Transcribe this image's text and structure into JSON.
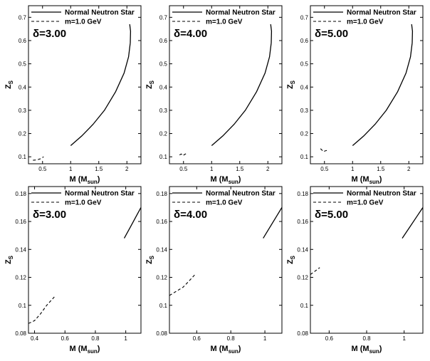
{
  "chart_data": [
    {
      "type": "line",
      "panel": "top-left",
      "annotation": "δ=3.00",
      "xlabel": "M (M",
      "xlabel_sub": "sun",
      "xlabel_end": ")",
      "ylabel": "Z",
      "ylabel_sub": "S",
      "xlim": [
        0.25,
        2.25
      ],
      "ylim": [
        0.07,
        0.75
      ],
      "xticks": [
        0.5,
        1,
        1.5,
        2
      ],
      "xtick_labels": [
        "0.5",
        "1",
        "1.5",
        "2"
      ],
      "yticks": [
        0.1,
        0.2,
        0.3,
        0.4,
        0.5,
        0.6,
        0.7
      ],
      "ytick_labels": [
        "0.1",
        "0.2",
        "0.3",
        "0.4",
        "0.5",
        "0.6",
        "0.7"
      ],
      "legend": {
        "position": "top-right",
        "entries": [
          "Normal Neutron Star",
          "m=1.0 GeV"
        ]
      },
      "series": [
        {
          "name": "Normal Neutron Star",
          "style": "solid",
          "x": [
            1.0,
            1.2,
            1.4,
            1.6,
            1.8,
            1.95,
            2.03,
            2.06,
            2.065,
            2.05
          ],
          "y": [
            0.148,
            0.19,
            0.24,
            0.3,
            0.38,
            0.46,
            0.53,
            0.59,
            0.64,
            0.67
          ]
        },
        {
          "name": "m=1.0 GeV",
          "style": "dashed",
          "x": [
            0.33,
            0.4,
            0.47,
            0.52
          ],
          "y": [
            0.085,
            0.087,
            0.092,
            0.1
          ]
        }
      ]
    },
    {
      "type": "line",
      "panel": "top-middle",
      "annotation": "δ=4.00",
      "xlabel": "M (M",
      "xlabel_sub": "sun",
      "xlabel_end": ")",
      "ylabel": "Z",
      "ylabel_sub": "S",
      "xlim": [
        0.25,
        2.25
      ],
      "ylim": [
        0.07,
        0.75
      ],
      "xticks": [
        0.5,
        1,
        1.5,
        2
      ],
      "xtick_labels": [
        "0.5",
        "1",
        "1.5",
        "2"
      ],
      "yticks": [
        0.1,
        0.2,
        0.3,
        0.4,
        0.5,
        0.6,
        0.7
      ],
      "ytick_labels": [
        "0.1",
        "0.2",
        "0.3",
        "0.4",
        "0.5",
        "0.6",
        "0.7"
      ],
      "legend": {
        "position": "top-right",
        "entries": [
          "Normal Neutron Star",
          "m=1.0 GeV"
        ]
      },
      "series": [
        {
          "name": "Normal Neutron Star",
          "style": "solid",
          "x": [
            1.0,
            1.2,
            1.4,
            1.6,
            1.8,
            1.95,
            2.03,
            2.06,
            2.065,
            2.05
          ],
          "y": [
            0.148,
            0.19,
            0.24,
            0.3,
            0.38,
            0.46,
            0.53,
            0.59,
            0.64,
            0.67
          ]
        },
        {
          "name": "m=1.0 GeV",
          "style": "dashed",
          "x": [
            0.43,
            0.46,
            0.49,
            0.52,
            0.56
          ],
          "y": [
            0.108,
            0.112,
            0.105,
            0.11,
            0.115
          ]
        }
      ]
    },
    {
      "type": "line",
      "panel": "top-right",
      "annotation": "δ=5.00",
      "xlabel": "M (M",
      "xlabel_sub": "sun",
      "xlabel_end": ")",
      "ylabel": "Z",
      "ylabel_sub": "S",
      "xlim": [
        0.25,
        2.25
      ],
      "ylim": [
        0.07,
        0.75
      ],
      "xticks": [
        0.5,
        1,
        1.5,
        2
      ],
      "xtick_labels": [
        "0.5",
        "1",
        "1.5",
        "2"
      ],
      "yticks": [
        0.1,
        0.2,
        0.3,
        0.4,
        0.5,
        0.6,
        0.7
      ],
      "ytick_labels": [
        "0.1",
        "0.2",
        "0.3",
        "0.4",
        "0.5",
        "0.6",
        "0.7"
      ],
      "legend": {
        "position": "top-right",
        "entries": [
          "Normal Neutron Star",
          "m=1.0 GeV"
        ]
      },
      "series": [
        {
          "name": "Normal Neutron Star",
          "style": "solid",
          "x": [
            1.0,
            1.2,
            1.4,
            1.6,
            1.8,
            1.95,
            2.03,
            2.06,
            2.065,
            2.05
          ],
          "y": [
            0.148,
            0.19,
            0.24,
            0.3,
            0.38,
            0.46,
            0.53,
            0.59,
            0.64,
            0.67
          ]
        },
        {
          "name": "m=1.0 GeV",
          "style": "dashed",
          "x": [
            0.43,
            0.46,
            0.48,
            0.51,
            0.55
          ],
          "y": [
            0.135,
            0.128,
            0.122,
            0.125,
            0.128
          ]
        }
      ]
    },
    {
      "type": "line",
      "panel": "bottom-left",
      "annotation": "δ=3.00",
      "xlabel": "M (M",
      "xlabel_sub": "sun",
      "xlabel_end": ")",
      "ylabel": "Z",
      "ylabel_sub": "S",
      "xlim": [
        0.36,
        1.1
      ],
      "ylim": [
        0.08,
        0.185
      ],
      "xticks": [
        0.4,
        0.6,
        0.8,
        1
      ],
      "xtick_labels": [
        "0.4",
        "0.6",
        "0.8",
        "1"
      ],
      "yticks": [
        0.08,
        0.1,
        0.12,
        0.14,
        0.16,
        0.18
      ],
      "ytick_labels": [
        "0.08",
        "0.1",
        "0.12",
        "0.14",
        "0.16",
        "0.18"
      ],
      "legend": {
        "position": "top-right",
        "entries": [
          "Normal Neutron Star",
          "m=1.0 GeV"
        ]
      },
      "series": [
        {
          "name": "Normal Neutron Star",
          "style": "solid",
          "x": [
            0.99,
            1.03,
            1.07,
            1.1
          ],
          "y": [
            0.148,
            0.156,
            0.164,
            0.17
          ]
        },
        {
          "name": "m=1.0 GeV",
          "style": "dashed",
          "x": [
            0.36,
            0.4,
            0.44,
            0.48,
            0.53
          ],
          "y": [
            0.087,
            0.089,
            0.094,
            0.1,
            0.106
          ]
        }
      ]
    },
    {
      "type": "line",
      "panel": "bottom-middle",
      "annotation": "δ=4.00",
      "xlabel": "M (M",
      "xlabel_sub": "sun",
      "xlabel_end": ")",
      "ylabel": "Z",
      "ylabel_sub": "S",
      "xlim": [
        0.44,
        1.1
      ],
      "ylim": [
        0.08,
        0.185
      ],
      "xticks": [
        0.6,
        0.8,
        1
      ],
      "xtick_labels": [
        "0.6",
        "0.8",
        "1"
      ],
      "yticks": [
        0.08,
        0.1,
        0.12,
        0.14,
        0.16,
        0.18
      ],
      "ytick_labels": [
        "0.08",
        "0.1",
        "0.12",
        "0.14",
        "0.16",
        "0.18"
      ],
      "legend": {
        "position": "top-right",
        "entries": [
          "Normal Neutron Star",
          "m=1.0 GeV"
        ]
      },
      "series": [
        {
          "name": "Normal Neutron Star",
          "style": "solid",
          "x": [
            0.99,
            1.03,
            1.07,
            1.1
          ],
          "y": [
            0.148,
            0.156,
            0.164,
            0.17
          ]
        },
        {
          "name": "m=1.0 GeV",
          "style": "dashed",
          "x": [
            0.44,
            0.48,
            0.52,
            0.56,
            0.59
          ],
          "y": [
            0.107,
            0.11,
            0.113,
            0.118,
            0.122
          ]
        }
      ]
    },
    {
      "type": "line",
      "panel": "bottom-right",
      "annotation": "δ=5.00",
      "xlabel": "M (M",
      "xlabel_sub": "sun",
      "xlabel_end": ")",
      "ylabel": "Z",
      "ylabel_sub": "S",
      "xlim": [
        0.5,
        1.1
      ],
      "ylim": [
        0.08,
        0.185
      ],
      "xticks": [
        0.6,
        0.8,
        1
      ],
      "xtick_labels": [
        "0.6",
        "0.8",
        "1"
      ],
      "yticks": [
        0.08,
        0.1,
        0.12,
        0.14,
        0.16,
        0.18
      ],
      "ytick_labels": [
        "0.08",
        "0.1",
        "0.12",
        "0.14",
        "0.16",
        "0.18"
      ],
      "legend": {
        "position": "top-right",
        "entries": [
          "Normal Neutron Star",
          "m=1.0 GeV"
        ]
      },
      "series": [
        {
          "name": "Normal Neutron Star",
          "style": "solid",
          "x": [
            0.99,
            1.03,
            1.07,
            1.1
          ],
          "y": [
            0.148,
            0.156,
            0.164,
            0.17
          ]
        },
        {
          "name": "m=1.0 GeV",
          "style": "dashed",
          "x": [
            0.5,
            0.52,
            0.54,
            0.55
          ],
          "y": [
            0.122,
            0.124,
            0.126,
            0.127
          ]
        }
      ]
    }
  ]
}
